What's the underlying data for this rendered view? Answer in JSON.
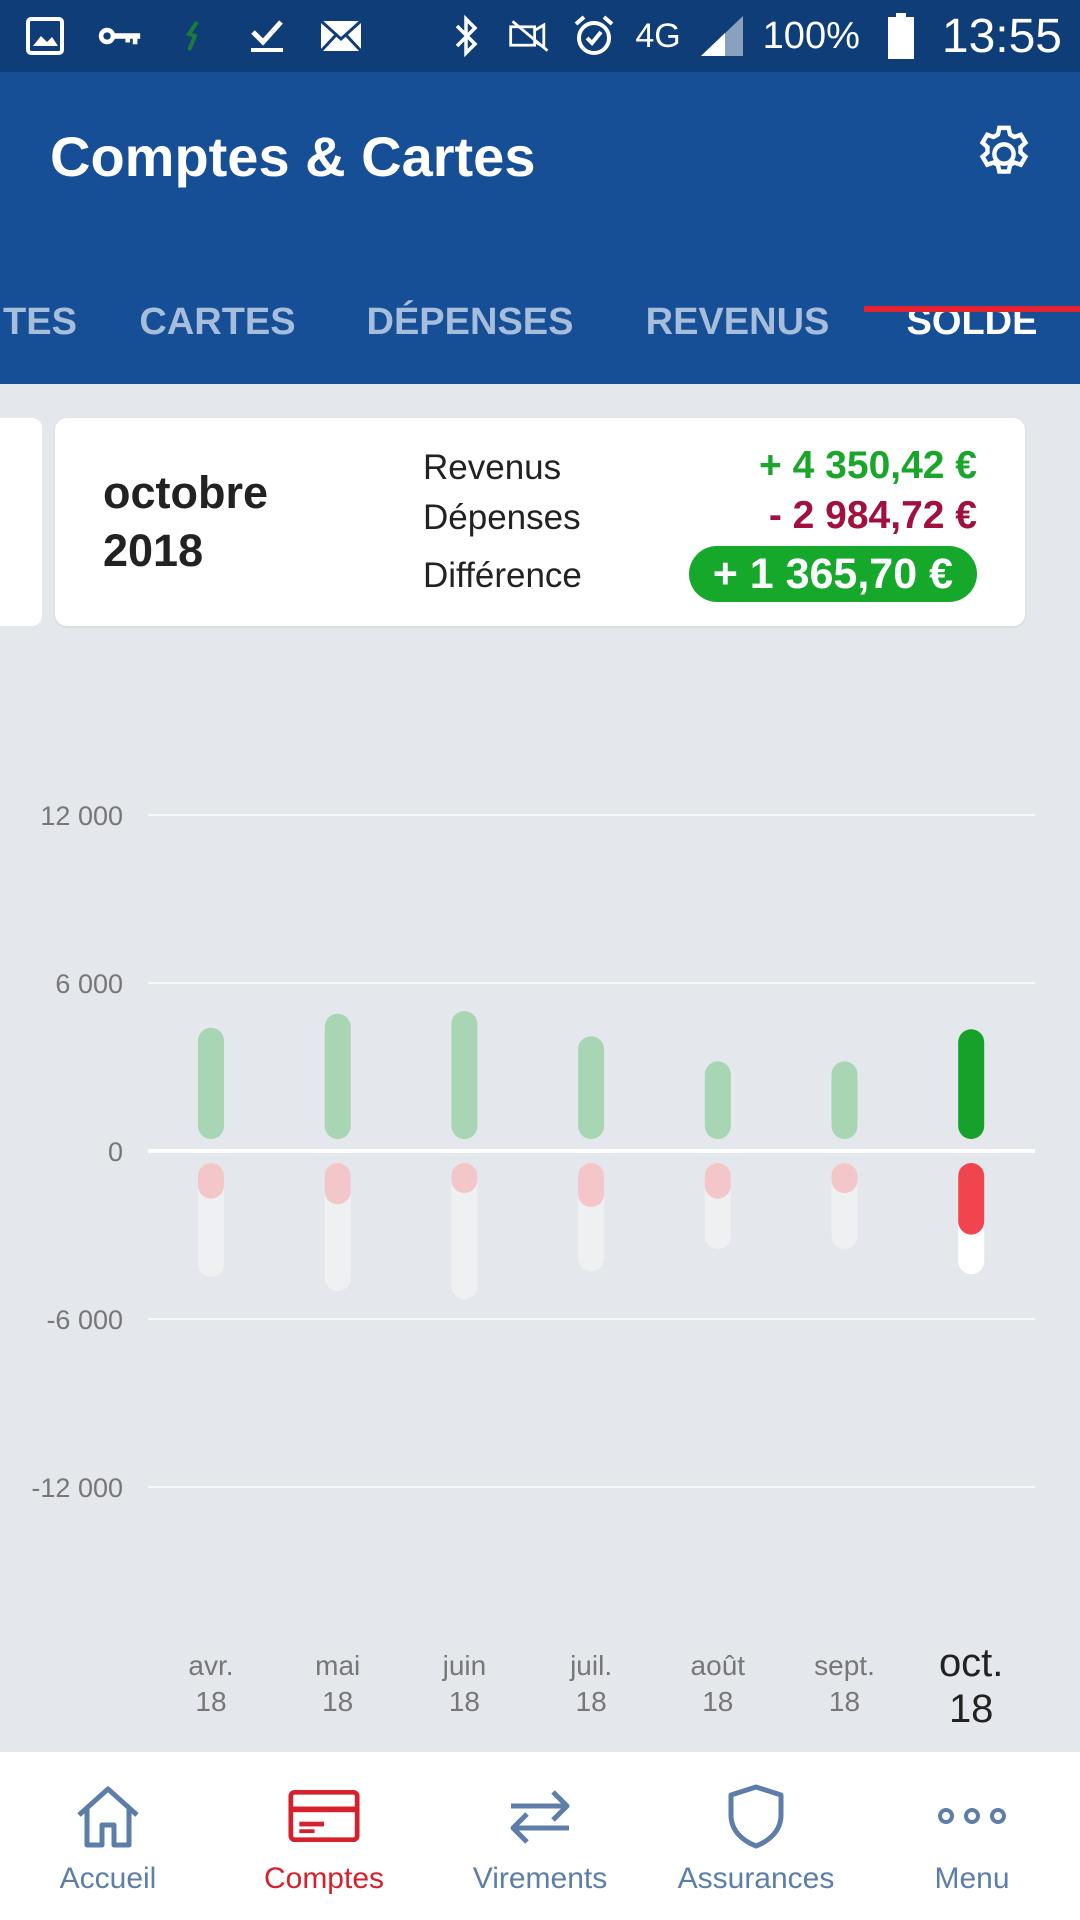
{
  "status_bar": {
    "network": "4G",
    "battery": "100%",
    "time": "13:55"
  },
  "app_bar": {
    "title": "Comptes & Cartes"
  },
  "tabs": [
    {
      "label": "TES",
      "active": false
    },
    {
      "label": "CARTES",
      "active": false
    },
    {
      "label": "DÉPENSES",
      "active": false
    },
    {
      "label": "REVENUS",
      "active": false
    },
    {
      "label": "SOLDE",
      "active": true
    }
  ],
  "summary": {
    "month": "octobre",
    "year": "2018",
    "income_label": "Revenus",
    "income_value": "+ 4 350,42 €",
    "expense_label": "Dépenses",
    "expense_value": "- 2 984,72 €",
    "difference_label": "Différence",
    "difference_value": "+ 1 365,70 €"
  },
  "chart_data": {
    "type": "bar",
    "y_ticks": [
      "12 000",
      "6 000",
      "0",
      "-6 000",
      "-12 000"
    ],
    "ylim": [
      -12000,
      12000
    ],
    "categories": [
      {
        "month": "avr.",
        "year": "18"
      },
      {
        "month": "mai",
        "year": "18"
      },
      {
        "month": "juin",
        "year": "18"
      },
      {
        "month": "juil.",
        "year": "18"
      },
      {
        "month": "août",
        "year": "18"
      },
      {
        "month": "sept.",
        "year": "18"
      },
      {
        "month": "oct.",
        "year": "18"
      }
    ],
    "selected_index": 6,
    "series": [
      {
        "key": "income",
        "values": [
          4400,
          4900,
          5000,
          4100,
          3200,
          3200,
          4350
        ],
        "color": "#15a12a"
      },
      {
        "key": "expense_balance",
        "values": [
          -1700,
          -1900,
          -1500,
          -2000,
          -1700,
          -1500,
          -2985
        ],
        "color": "#f0454e"
      },
      {
        "key": "expense_total",
        "values": [
          -4500,
          -5000,
          -5300,
          -4300,
          -3500,
          -3500,
          -4400
        ],
        "color": "#ffffff"
      }
    ]
  },
  "bottom_nav": [
    {
      "label": "Accueil",
      "icon": "home-icon",
      "active": false
    },
    {
      "label": "Comptes",
      "icon": "card-icon",
      "active": true
    },
    {
      "label": "Virements",
      "icon": "transfer-icon",
      "active": false
    },
    {
      "label": "Assurances",
      "icon": "shield-icon",
      "active": false
    },
    {
      "label": "Menu",
      "icon": "more-icon",
      "active": false
    }
  ],
  "colors": {
    "status_bar": "#0f3d78",
    "app_bar": "#164f95",
    "accent_red": "#e5222e",
    "positive_green": "#16a82a",
    "negative_red": "#a0123d",
    "background": "#e4e8ec"
  }
}
